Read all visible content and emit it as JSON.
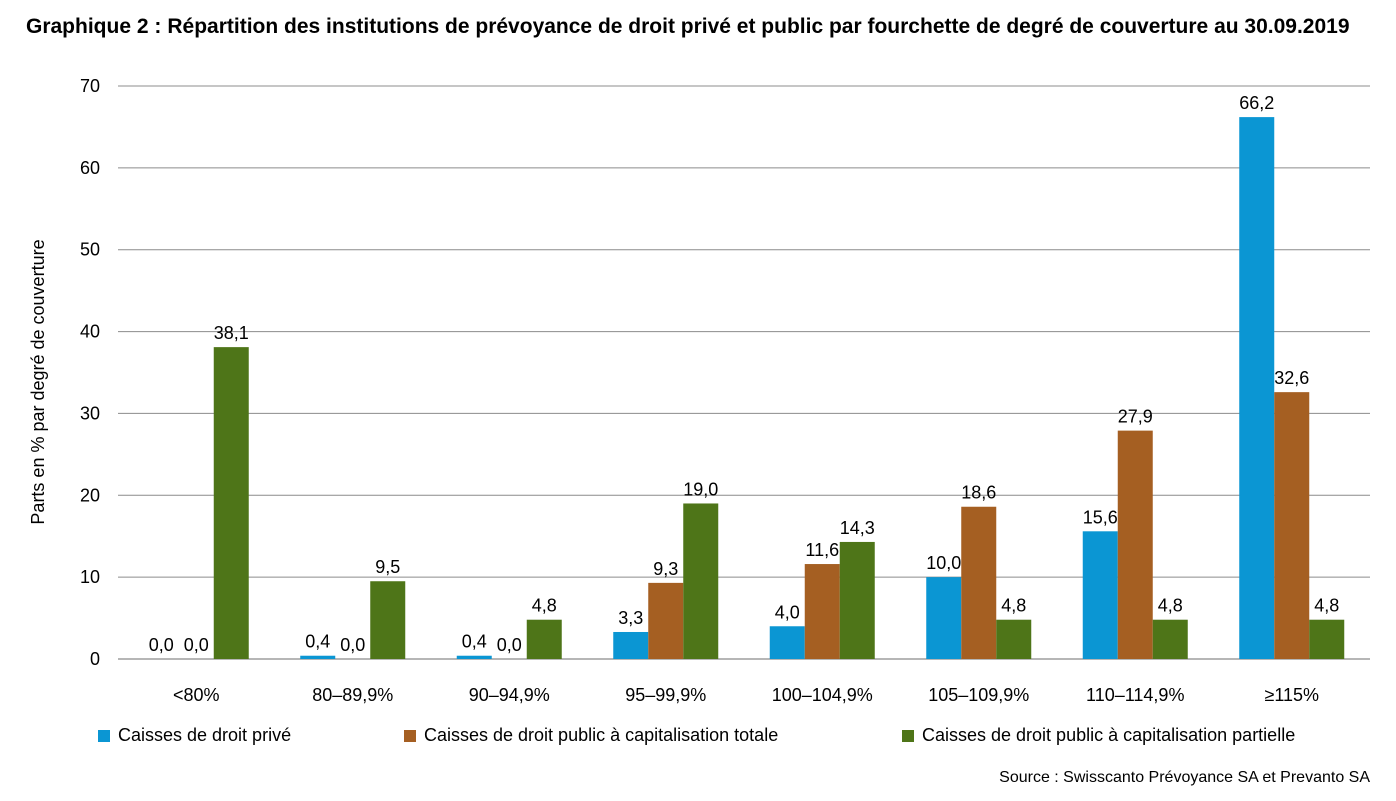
{
  "title": {
    "prefix": "Graphique 2 :",
    "text": "Répartition des institutions de prévoyance de droit privé et public par fourchette de degré de couverture au 30.09.2019"
  },
  "source": "Source : Swisscanto Prévoyance SA et Prevanto SA",
  "chart_data": {
    "type": "bar",
    "ylabel": "Parts en % par degré de couverture",
    "xlabel": "",
    "ylim": [
      0,
      70
    ],
    "yticks": [
      0,
      10,
      20,
      30,
      40,
      50,
      60,
      70
    ],
    "grid": true,
    "legend_position": "bottom",
    "categories": [
      "<80%",
      "80–89,9%",
      "90–94,9%",
      "95–99,9%",
      "100–104,9%",
      "105–109,9%",
      "110–114,9%",
      "≥115%"
    ],
    "series": [
      {
        "name": "Caisses de droit privé",
        "color": "#0b96d3",
        "values": [
          0.0,
          0.4,
          0.4,
          3.3,
          4.0,
          10.0,
          15.6,
          66.2
        ],
        "labels": [
          "0,0",
          "0,4",
          "0,4",
          "3,3",
          "4,0",
          "10,0",
          "15,6",
          "66,2"
        ]
      },
      {
        "name": "Caisses de droit public à capitalisation totale",
        "color": "#a55f22",
        "values": [
          0.0,
          0.0,
          0.0,
          9.3,
          11.6,
          18.6,
          27.9,
          32.6
        ],
        "labels": [
          "0,0",
          "0,0",
          "0,0",
          "9,3",
          "11,6",
          "18,6",
          "27,9",
          "32,6"
        ]
      },
      {
        "name": "Caisses de droit public à capitalisation partielle",
        "color": "#4e7518",
        "values": [
          38.1,
          9.5,
          4.8,
          19.0,
          14.3,
          4.8,
          4.8,
          4.8
        ],
        "labels": [
          "38,1",
          "9,5",
          "4,8",
          "19,0",
          "14,3",
          "4,8",
          "4,8",
          "4,8"
        ]
      }
    ]
  }
}
